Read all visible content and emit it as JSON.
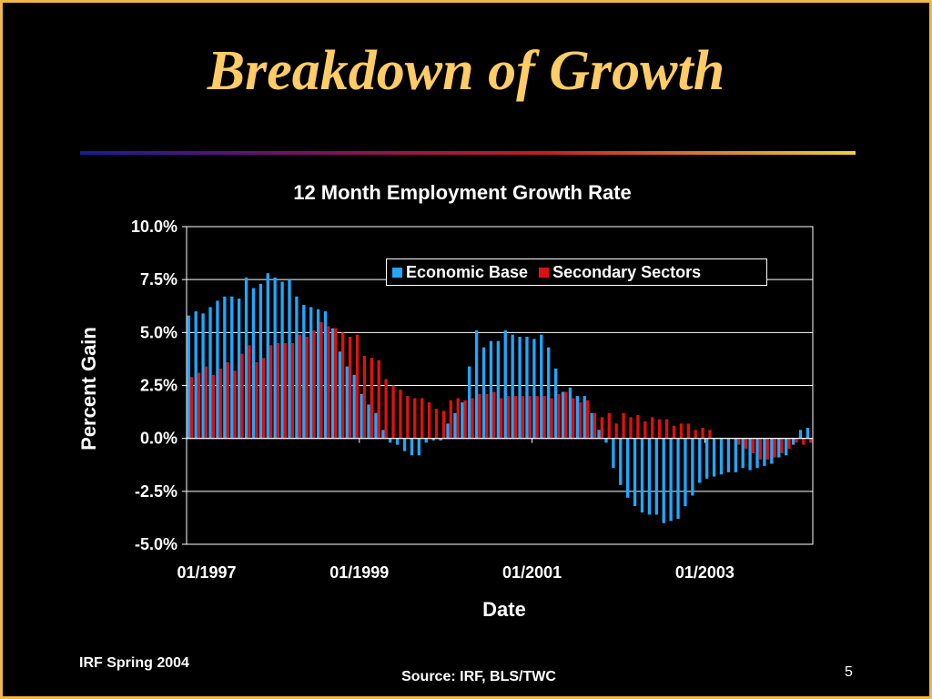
{
  "slide": {
    "title": "Breakdown of Growth",
    "footer_left": "IRF Spring 2004",
    "source": "Source: IRF, BLS/TWC",
    "page_number": "5"
  },
  "colors": {
    "background": "#000000",
    "title": "#ffcc66",
    "border": "#f0b848",
    "economic_base": "#1ea8ff",
    "secondary_sectors": "#e01010",
    "text": "#ffffff"
  },
  "chart_data": {
    "type": "bar",
    "title": "12 Month Employment Growth Rate",
    "xlabel": "Date",
    "ylabel": "Percent Gain",
    "ylim": [
      -5.0,
      10.0
    ],
    "yticks": [
      "10.0%",
      "7.5%",
      "5.0%",
      "2.5%",
      "0.0%",
      "-2.5%",
      "-5.0%"
    ],
    "ytick_values": [
      10.0,
      7.5,
      5.0,
      2.5,
      0.0,
      -2.5,
      -5.0
    ],
    "xtick_labels": [
      "01/1997",
      "01/1999",
      "01/2001",
      "01/2003"
    ],
    "xtick_months": [
      "1997-01",
      "1999-01",
      "2001-01",
      "2003-01"
    ],
    "x_start": "1997-01",
    "x_end": "2004-03",
    "grid": true,
    "legend_position": "top-right",
    "series": [
      {
        "name": "Economic Base",
        "color": "#1ea8ff",
        "values": [
          5.8,
          6.0,
          5.9,
          6.2,
          6.5,
          6.7,
          6.7,
          6.6,
          7.6,
          7.1,
          7.3,
          7.8,
          7.6,
          7.4,
          7.5,
          6.7,
          6.3,
          6.2,
          6.1,
          6.0,
          5.2,
          4.1,
          3.4,
          3.0,
          2.1,
          1.6,
          1.2,
          0.4,
          -0.2,
          -0.3,
          -0.6,
          -0.8,
          -0.8,
          -0.2,
          -0.1,
          -0.1,
          0.7,
          1.2,
          1.7,
          3.4,
          5.1,
          4.3,
          4.6,
          4.6,
          5.1,
          4.9,
          4.8,
          4.8,
          4.7,
          4.9,
          4.3,
          3.3,
          2.2,
          2.4,
          2.0,
          2.0,
          1.2,
          0.4,
          -0.2,
          -1.4,
          -2.2,
          -2.8,
          -3.2,
          -3.5,
          -3.6,
          -3.6,
          -4.0,
          -3.9,
          -3.8,
          -3.2,
          -2.7,
          -2.1,
          -1.9,
          -1.8,
          -1.7,
          -1.6,
          -1.6,
          -1.4,
          -1.5,
          -1.4,
          -1.3,
          -1.2,
          -0.9,
          -0.8,
          -0.3,
          0.4,
          0.5
        ]
      },
      {
        "name": "Secondary Sectors",
        "color": "#e01010",
        "values": [
          2.9,
          3.1,
          3.4,
          3.0,
          3.3,
          3.6,
          3.2,
          4.0,
          4.4,
          3.6,
          3.8,
          4.4,
          4.5,
          4.5,
          4.5,
          4.9,
          4.8,
          5.1,
          5.5,
          5.3,
          5.2,
          5.0,
          4.8,
          4.9,
          3.9,
          3.8,
          3.7,
          2.8,
          2.5,
          2.3,
          2.0,
          1.9,
          1.9,
          1.7,
          1.4,
          1.3,
          1.8,
          1.9,
          1.8,
          1.9,
          2.1,
          2.1,
          2.2,
          1.9,
          2.0,
          2.0,
          2.0,
          2.0,
          2.0,
          2.0,
          1.9,
          2.1,
          2.2,
          1.9,
          1.7,
          1.8,
          1.2,
          1.0,
          1.2,
          0.7,
          1.2,
          1.0,
          1.1,
          0.8,
          1.0,
          0.9,
          0.9,
          0.6,
          0.7,
          0.7,
          0.4,
          0.5,
          0.4,
          0.0,
          0.0,
          0.0,
          -0.3,
          -0.5,
          -0.7,
          -1.0,
          -1.0,
          -0.9,
          -0.7,
          -0.5,
          -0.2,
          -0.3,
          -0.2
        ]
      }
    ]
  }
}
